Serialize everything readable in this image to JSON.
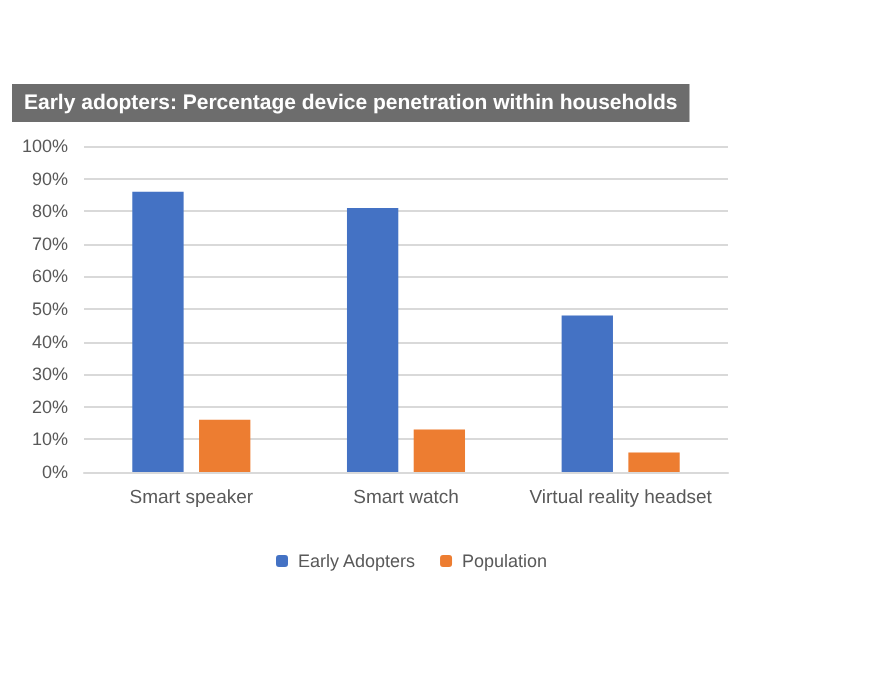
{
  "chart_data": {
    "type": "bar",
    "title": "Early adopters: Percentage device penetration within households",
    "categories": [
      "Smart speaker",
      "Smart watch",
      "Virtual reality headset"
    ],
    "series": [
      {
        "name": "Early Adopters",
        "color": "#4472c4",
        "values": [
          86,
          81,
          48
        ]
      },
      {
        "name": "Population",
        "color": "#ed7d31",
        "values": [
          16,
          13,
          6
        ]
      }
    ],
    "ylim": [
      0,
      100
    ],
    "yticks": [
      {
        "value": 0,
        "label": "0%"
      },
      {
        "value": 10,
        "label": "10%"
      },
      {
        "value": 20,
        "label": "20%"
      },
      {
        "value": 30,
        "label": "30%"
      },
      {
        "value": 40,
        "label": "40%"
      },
      {
        "value": 50,
        "label": "50%"
      },
      {
        "value": 60,
        "label": "60%"
      },
      {
        "value": 70,
        "label": "70%"
      },
      {
        "value": 80,
        "label": "80%"
      },
      {
        "value": 90,
        "label": "90%"
      },
      {
        "value": 100,
        "label": "100%"
      }
    ],
    "grid": "y",
    "legend": "bottom"
  }
}
